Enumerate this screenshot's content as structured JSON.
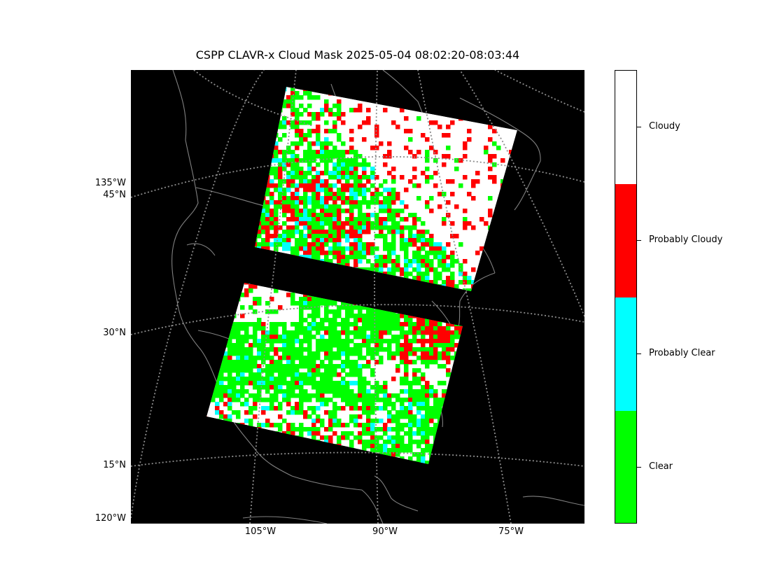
{
  "title": "CSPP CLAVR-x Cloud Mask 2025-05-04 08:02:20-08:03:44",
  "map": {
    "background_color": "#000000",
    "coastline_color": "#808080",
    "gridline_color": "#8c8c8c",
    "latitude_labels": [
      "45°N",
      "30°N",
      "15°N"
    ],
    "longitude_left_labels": [
      "135°W",
      "120°W"
    ],
    "longitude_bottom_labels": [
      "105°W",
      "90°W",
      "75°W"
    ]
  },
  "colorbar": {
    "categories": [
      {
        "label": "Cloudy",
        "color": "#ffffff"
      },
      {
        "label": "Probably Cloudy",
        "color": "#ff0000"
      },
      {
        "label": "Probably Clear",
        "color": "#00ffff"
      },
      {
        "label": "Clear",
        "color": "#00ff00"
      }
    ]
  }
}
